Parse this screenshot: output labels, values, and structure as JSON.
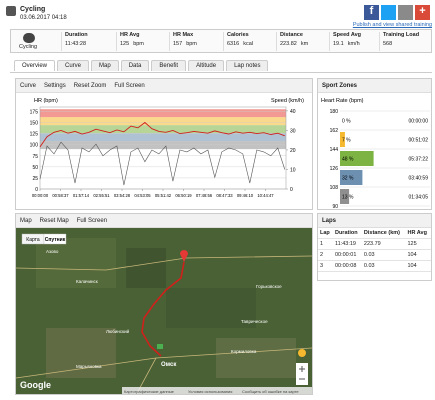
{
  "header": {
    "title": "Cycling",
    "datetime": "03.06.2017 04:18",
    "share_text": "Publish and view shared training"
  },
  "summary": {
    "sport": "Cycling",
    "stats": [
      {
        "label": "Duration",
        "value": "11:43:28"
      },
      {
        "label": "HR Avg",
        "value": "125",
        "unit": "bpm"
      },
      {
        "label": "HR Max",
        "value": "157",
        "unit": "bpm"
      },
      {
        "label": "Calories",
        "value": "6316",
        "unit": "kcal"
      },
      {
        "label": "Distance",
        "value": "223.82",
        "unit": "km"
      },
      {
        "label": "Speed Avg",
        "value": "19.1",
        "unit": "km/h"
      },
      {
        "label": "Training Load",
        "value": "568"
      }
    ]
  },
  "tabs": [
    "Overview",
    "Curve",
    "Map",
    "Data",
    "Benefit",
    "Altitude",
    "Lap notes"
  ],
  "active_tab": 0,
  "curve_toolbar": [
    "Curve",
    "Settings",
    "Reset Zoom",
    "Full Screen"
  ],
  "curve_chart": {
    "type": "line",
    "y_label": "HR (bpm)",
    "y2_label": "Speed (km/h)",
    "x": [
      0,
      1200,
      2400,
      3600,
      4800,
      6000,
      7200,
      8400,
      9600,
      10800,
      12000,
      13200,
      14400,
      15600,
      16800,
      18000,
      19200,
      20400,
      21600,
      22800,
      24000,
      25200,
      26400,
      27600,
      28800,
      30000,
      31200,
      32400,
      33600,
      34800,
      36000,
      37200,
      38400,
      39600,
      40800,
      42000
    ],
    "xlim": [
      0,
      42208
    ],
    "xticks": [
      {
        "value": 0,
        "label": "00:00:00"
      },
      {
        "value": 3517,
        "label": "00:58:37"
      },
      {
        "value": 7034,
        "label": "01:57:14"
      },
      {
        "value": 10551,
        "label": "02:55:51"
      },
      {
        "value": 14068,
        "label": "03:54:28"
      },
      {
        "value": 17585,
        "label": "04:53:05"
      },
      {
        "value": 21102,
        "label": "05:51:42"
      },
      {
        "value": 24619,
        "label": "06:50:19"
      },
      {
        "value": 28136,
        "label": "07:48:56"
      },
      {
        "value": 31653,
        "label": "08:47:33"
      },
      {
        "value": 35170,
        "label": "09:46:10"
      },
      {
        "value": 38687,
        "label": "10:44:47"
      }
    ],
    "ylim": [
      0,
      185
    ],
    "yticks": [
      0,
      25,
      50,
      75,
      100,
      125,
      150,
      175
    ],
    "y2lim": [
      0,
      42
    ],
    "y2ticks": [
      0,
      10,
      20,
      30,
      40
    ],
    "series": [
      {
        "name": "HR",
        "color": "#d0201a",
        "values": [
          95,
          118,
          128,
          132,
          126,
          130,
          124,
          128,
          135,
          131,
          127,
          133,
          129,
          142,
          138,
          150,
          136,
          130,
          128,
          132,
          125,
          127,
          130,
          128,
          126,
          131,
          127,
          124,
          129,
          126,
          128,
          125,
          127,
          123,
          126,
          120
        ]
      },
      {
        "name": "Speed",
        "color": "#555555",
        "axis": "y2",
        "values": [
          5,
          22,
          18,
          24,
          20,
          3,
          21,
          19,
          23,
          17,
          20,
          22,
          2,
          19,
          21,
          14,
          20,
          18,
          22,
          4,
          20,
          19,
          21,
          18,
          20,
          6,
          19,
          21,
          20,
          18,
          3,
          20,
          19,
          17,
          21,
          10
        ]
      }
    ]
  },
  "sport_zones": {
    "title": "Sport Zones",
    "axis_label": "Heart Rate (bpm)",
    "bounds": [
      180,
      162,
      144,
      126,
      108,
      90
    ],
    "zones": [
      {
        "percent": 0,
        "label": "0 %",
        "time": "00:00:00",
        "color": "#e8453c"
      },
      {
        "percent": 7,
        "label": "7 %",
        "time": "00:51:02",
        "color": "#f5b82e"
      },
      {
        "percent": 48,
        "label": "48 %",
        "time": "05:37:22",
        "color": "#7cb342"
      },
      {
        "percent": 32,
        "label": "32 %",
        "time": "03:40:59",
        "color": "#6d8fb0"
      },
      {
        "percent": 13,
        "label": "13 %",
        "time": "01:34:05",
        "color": "#8f8f8f"
      }
    ]
  },
  "map": {
    "toolbar": [
      "Map",
      "Reset Map",
      "Full Screen"
    ],
    "map_types": [
      "Карта",
      "Спутник"
    ],
    "places": [
      "Омск",
      "Калачинск",
      "Любинский",
      "Азово",
      "Таврическое",
      "Марьяновка",
      "Кормиловка",
      "Горьковское"
    ],
    "logo": "Google",
    "attribution": [
      "Картографические данные",
      "Условия использования",
      "Сообщить об ошибке на карте"
    ]
  },
  "laps": {
    "title": "Laps",
    "columns": [
      "Lap",
      "Duration",
      "Distance (km)",
      "HR Avg"
    ],
    "rows": [
      [
        1,
        "11:43:19",
        223.79,
        125
      ],
      [
        2,
        "00:00:01",
        0.03,
        104
      ],
      [
        3,
        "00:00:08",
        0.03,
        104
      ]
    ]
  }
}
